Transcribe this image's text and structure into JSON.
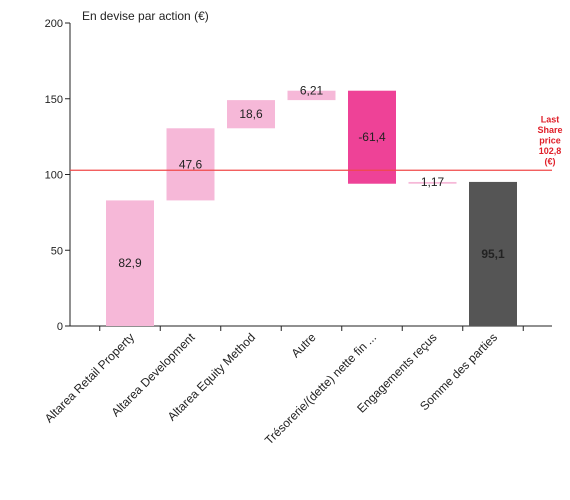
{
  "chart_data": {
    "type": "bar",
    "subtype": "waterfall",
    "ylabel": "En devise par action (€)",
    "ylim": [
      0,
      200
    ],
    "yticks": [
      0,
      50,
      100,
      150,
      200
    ],
    "grid": false,
    "categories": [
      "Altarea Retail Property",
      "Altarea Development",
      "Altarea Equity Method",
      "Autre",
      "Trésorerie/(dette) nette fin ...",
      "Engagements reçus",
      "Somme des parties"
    ],
    "bars": [
      {
        "base": 0,
        "top": 82.9,
        "label": "82,9",
        "color": "#f6b8d8",
        "label_color": "#222222"
      },
      {
        "base": 82.9,
        "top": 130.5,
        "label": "47,6",
        "color": "#f6b8d8",
        "label_color": "#222222"
      },
      {
        "base": 130.5,
        "top": 149.1,
        "label": "18,6",
        "color": "#f6b8d8",
        "label_color": "#222222"
      },
      {
        "base": 149.1,
        "top": 155.31,
        "label": "6,21",
        "color": "#f6b8d8",
        "label_color": "#222222"
      },
      {
        "base": 93.91,
        "top": 155.31,
        "label": "-61,4",
        "color": "#ee4297",
        "label_color": "#222222"
      },
      {
        "base": 93.91,
        "top": 95.08,
        "label": "1,17",
        "color": "#f6b8d8",
        "label_color": "#222222"
      },
      {
        "base": 0,
        "top": 95.1,
        "label": "95,1",
        "color": "#555555",
        "label_color": "#ffffff"
      }
    ],
    "reference_line": {
      "value": 102.8,
      "label_lines": [
        "Last",
        "Share",
        "price",
        "102,8",
        "(€)"
      ],
      "color": "#f04a4a"
    }
  }
}
